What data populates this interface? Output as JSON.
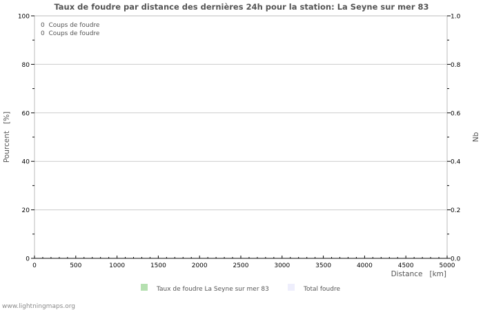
{
  "chart_data": {
    "type": "bar",
    "title": "Taux de foudre par distance des dernières 24h pour la station: La Seyne sur mer 83",
    "xlabel": "Distance   [km]",
    "ylabel": "Pourcent   [%]",
    "y2label": "Nb",
    "xlim": [
      0,
      5000
    ],
    "ylim": [
      0,
      100
    ],
    "y2lim": [
      0,
      1.0
    ],
    "xticks": [
      "0",
      "500",
      "1000",
      "1500",
      "2000",
      "2500",
      "3000",
      "3500",
      "4000",
      "4500",
      "5000"
    ],
    "yticks": [
      "0",
      "20",
      "40",
      "60",
      "80",
      "100"
    ],
    "y2ticks": [
      "0.0",
      "0.2",
      "0.4",
      "0.6",
      "0.8",
      "1.0"
    ],
    "grid": true,
    "annotations": [
      "0  Coups de foudre",
      "0  Coups de foudre"
    ],
    "series": [
      {
        "name": "Taux de foudre La Seyne sur mer 83",
        "color": "#b5e0b0",
        "values": []
      },
      {
        "name": "Total foudre",
        "color": "#eeeefc",
        "values": []
      }
    ],
    "legend_position": "bottom"
  },
  "footer": "www.lightningmaps.org"
}
